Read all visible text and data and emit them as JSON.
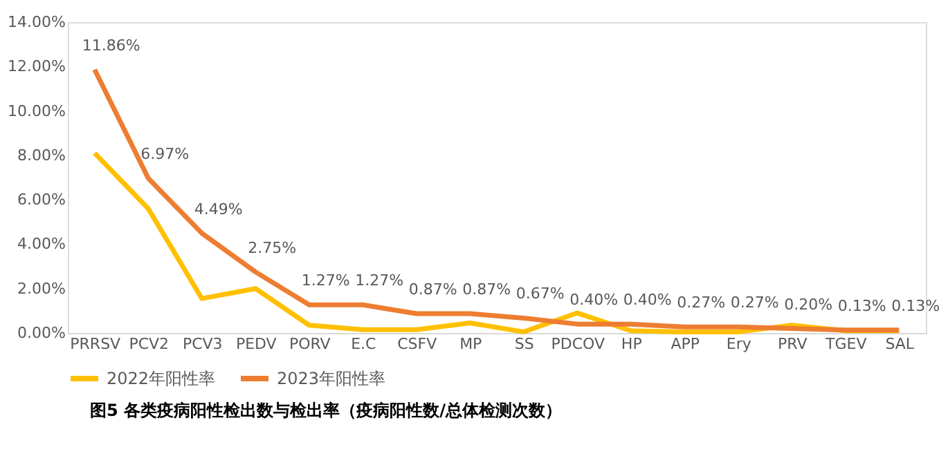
{
  "chart_data": {
    "type": "line",
    "categories": [
      "PRRSV",
      "PCV2",
      "PCV3",
      "PEDV",
      "PORV",
      "E.C",
      "CSFV",
      "MP",
      "SS",
      "PDCOV",
      "HP",
      "APP",
      "Ery",
      "PRV",
      "TGEV",
      "SAL"
    ],
    "series": [
      {
        "name": "2022年阳性率",
        "color": "#ffc000",
        "values": [
          8.1,
          5.6,
          1.55,
          2.0,
          0.35,
          0.15,
          0.15,
          0.45,
          0.05,
          0.9,
          0.1,
          0.05,
          0.05,
          0.35,
          0.1,
          0.1
        ]
      },
      {
        "name": "2023年阳性率",
        "color": "#ed7d31",
        "values": [
          11.86,
          6.97,
          4.49,
          2.75,
          1.27,
          1.27,
          0.87,
          0.87,
          0.67,
          0.4,
          0.4,
          0.27,
          0.27,
          0.2,
          0.13,
          0.13
        ],
        "value_labels": [
          "11.86%",
          "6.97%",
          "4.49%",
          "2.75%",
          "1.27%",
          "1.27%",
          "0.87%",
          "0.87%",
          "0.67%",
          "0.40%",
          "0.40%",
          "0.27%",
          "0.27%",
          "0.20%",
          "0.13%",
          "0.13%"
        ]
      }
    ],
    "ylim": [
      0,
      14
    ],
    "yticks": [
      {
        "value": 0,
        "label": "0.00%"
      },
      {
        "value": 2,
        "label": "2.00%"
      },
      {
        "value": 4,
        "label": "4.00%"
      },
      {
        "value": 6,
        "label": "6.00%"
      },
      {
        "value": 8,
        "label": "8.00%"
      },
      {
        "value": 10,
        "label": "10.00%"
      },
      {
        "value": 12,
        "label": "12.00%"
      },
      {
        "value": 14,
        "label": "14.00%"
      }
    ],
    "grid": false,
    "legend": "bottom",
    "marker": "none",
    "line_style": "solid",
    "annotations": [
      "图5 各类疫病阳性检出数与检出率（疫病阳性数/总体检测次数）"
    ]
  }
}
